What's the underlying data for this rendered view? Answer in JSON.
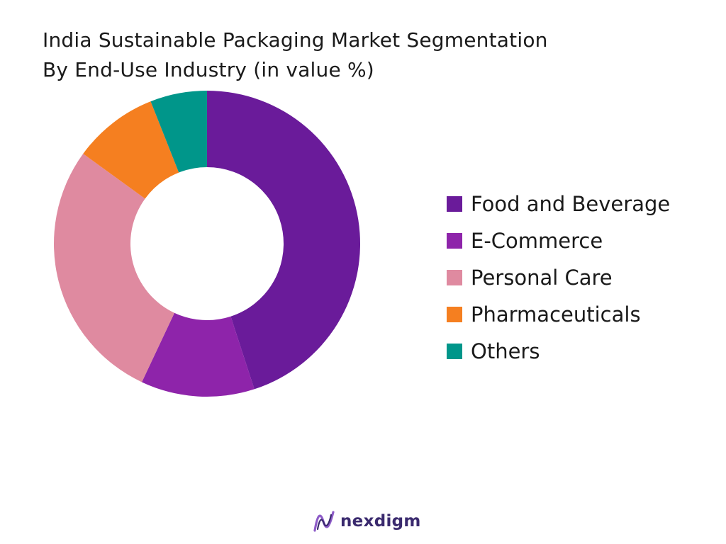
{
  "chart_data": {
    "type": "pie",
    "style": "donut",
    "title_lines": [
      "India Sustainable Packaging Market Segmentation",
      "By End-Use Industry (in value %)"
    ],
    "categories": [
      "Food and Beverage",
      "E-Commerce",
      "Personal Care",
      "Pharmaceuticals",
      "Others"
    ],
    "values": [
      45,
      12,
      28,
      9,
      6
    ],
    "colors": [
      "#6a1b9a",
      "#8e24aa",
      "#df8aa0",
      "#f57f20",
      "#00968a"
    ],
    "legend_position": "right"
  },
  "brand": {
    "name": "nexdigm",
    "color": "#3a2a6e",
    "accent": "#8e5cc8"
  }
}
